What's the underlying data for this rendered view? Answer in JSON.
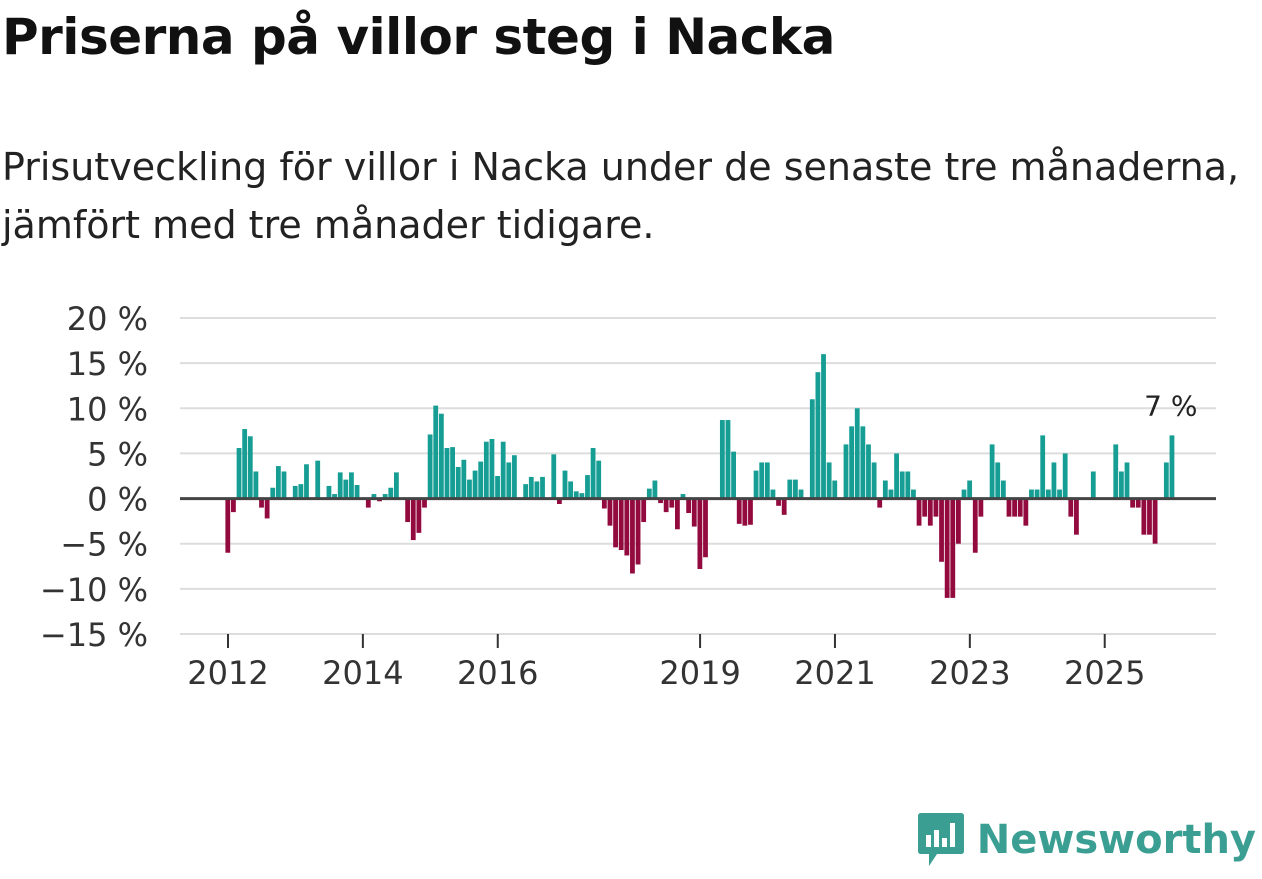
{
  "title": "Priserna på villor steg i Nacka",
  "subtitle": "Prisutveckling för villor i Nacka under de senaste tre månaderna, jämfört med tre månader tidigare.",
  "brand": {
    "name": "Newsworthy",
    "icon": "newsworthy-logo-icon"
  },
  "colors": {
    "positive": "#169e94",
    "negative": "#930a3f",
    "grid": "#dddddd",
    "zero": "#444444"
  },
  "chart_data": {
    "type": "bar",
    "ylim": [
      -15,
      20
    ],
    "yticks": [
      20,
      15,
      10,
      5,
      0,
      -5,
      -10,
      -15
    ],
    "ytick_labels": [
      "20 %",
      "15 %",
      "10 %",
      "5 %",
      "0 %",
      "−5 %",
      "−10 %",
      "−15 %"
    ],
    "x_start_year": 2012,
    "points_per_year": 12,
    "xticks": [
      "2012",
      "2014",
      "2016",
      "2019",
      "2021",
      "2023",
      "2025"
    ],
    "last_label": "7 %",
    "values": [
      -6,
      -1.5,
      5.6,
      7.7,
      6.9,
      3.0,
      -1.0,
      -2.2,
      1.2,
      3.6,
      3.0,
      0,
      1.4,
      1.6,
      3.8,
      0,
      4.2,
      0,
      1.4,
      0.5,
      2.9,
      2.1,
      2.9,
      1.5,
      0,
      -1.0,
      0.5,
      -0.3,
      0.5,
      1.2,
      2.9,
      0,
      -2.6,
      -4.6,
      -3.8,
      -1.0,
      7.1,
      10.3,
      9.4,
      5.6,
      5.7,
      3.5,
      4.3,
      2.1,
      3.1,
      4.1,
      6.3,
      6.6,
      2.5,
      6.3,
      4.0,
      4.8,
      0,
      1.6,
      2.4,
      1.9,
      2.4,
      0,
      4.9,
      -0.6,
      3.1,
      1.9,
      0.8,
      0.6,
      2.6,
      5.6,
      4.2,
      -1.1,
      -3.0,
      -5.4,
      -5.7,
      -6.3,
      -8.3,
      -7.3,
      -2.6,
      1.1,
      2.0,
      -0.5,
      -1.5,
      -1.0,
      -3.4,
      0.5,
      -1.6,
      -3.1,
      -7.8,
      -6.5,
      0,
      0,
      8.7,
      8.7,
      5.2,
      -2.8,
      -3.0,
      -2.9,
      3.1,
      4.0,
      4.0,
      1.0,
      -0.8,
      -1.8,
      2.1,
      2.1,
      1.0,
      0,
      11.0,
      14.0,
      16.0,
      4.0,
      2.0,
      0,
      6.0,
      8.0,
      10.0,
      8.0,
      6.0,
      4.0,
      -1.0,
      2.0,
      1.0,
      5.0,
      3.0,
      3.0,
      1.0,
      -3.0,
      -2.0,
      -3.0,
      -2.0,
      -7.0,
      -11.0,
      -11.0,
      -5.0,
      1.0,
      2.0,
      -6.0,
      -2.0,
      0,
      6.0,
      4.0,
      2.0,
      -2.0,
      -2.0,
      -2.0,
      -3.0,
      1.0,
      1.0,
      7.0,
      1.0,
      4.0,
      1.0,
      5.0,
      -2.0,
      -4.0,
      0,
      0,
      3.0,
      0,
      0,
      0,
      6.0,
      3.0,
      4.0,
      -1.0,
      -1.0,
      -4.0,
      -4.0,
      -5.0,
      0,
      4.0,
      7.0
    ]
  }
}
